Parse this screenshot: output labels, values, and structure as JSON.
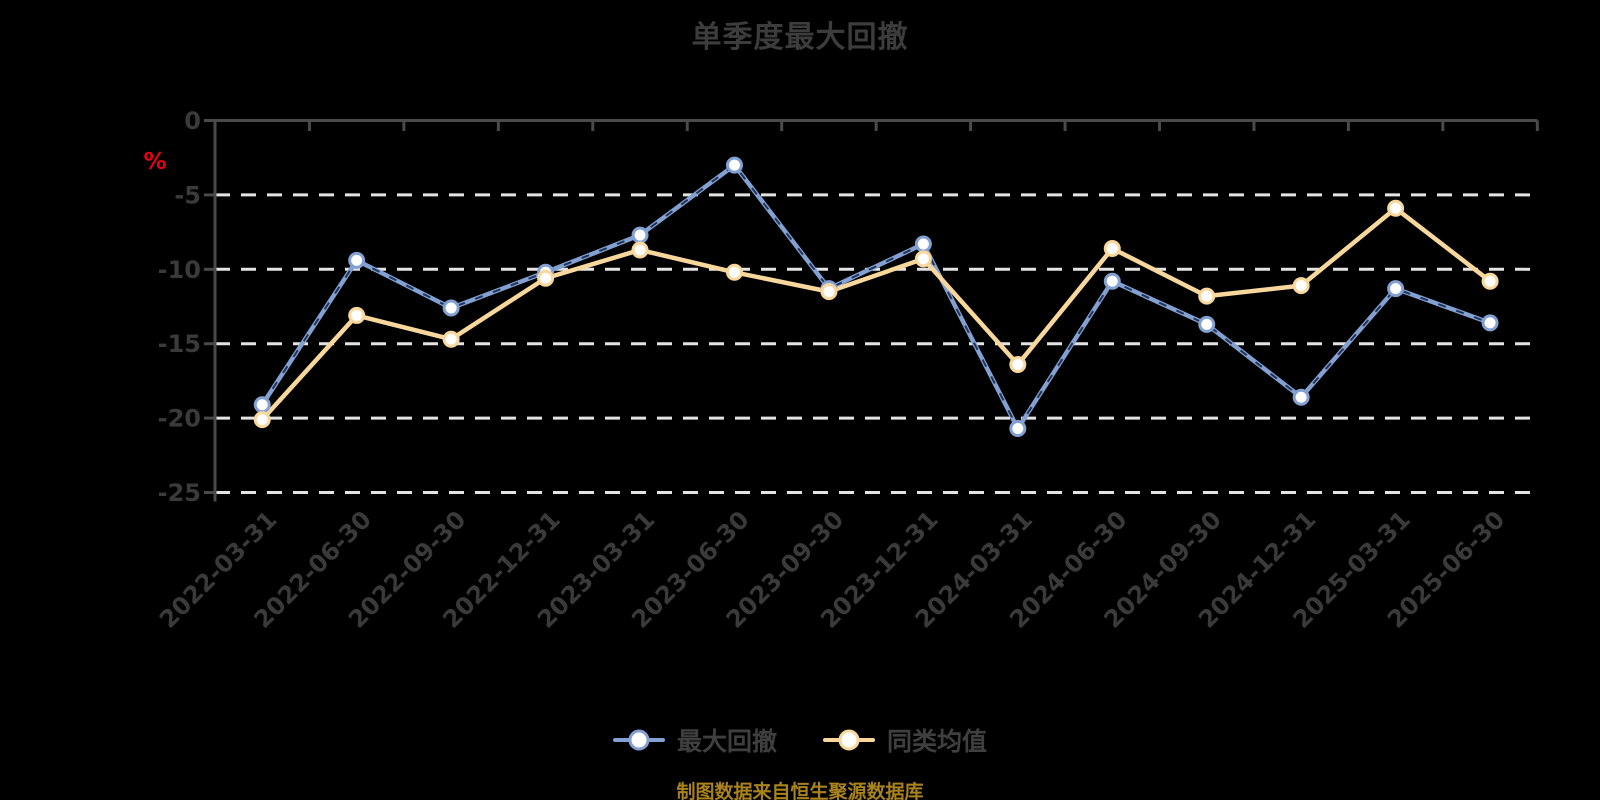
{
  "chart_data": {
    "type": "line",
    "title": "单季度最大回撤",
    "ylabel": "%",
    "source_note": "制图数据来自恒生聚源数据库",
    "ylim": [
      -25,
      0
    ],
    "yticks": [
      0,
      -5,
      -10,
      -15,
      -20,
      -25
    ],
    "grid": "horizontal-dashed",
    "legend_position": "bottom",
    "categories": [
      "2022-03-31",
      "2022-06-30",
      "2022-09-30",
      "2022-12-31",
      "2023-03-31",
      "2023-06-30",
      "2023-09-30",
      "2023-12-31",
      "2024-03-31",
      "2024-06-30",
      "2024-09-30",
      "2024-12-31",
      "2025-03-31",
      "2025-06-30"
    ],
    "series": [
      {
        "name": "最大回撤",
        "color": "#82a0d2",
        "values": [
          -19.1,
          -9.4,
          -12.6,
          -10.2,
          -7.7,
          -3.0,
          -11.3,
          -8.3,
          -20.7,
          -10.8,
          -13.7,
          -18.6,
          -11.3,
          -13.6
        ]
      },
      {
        "name": "同类均值",
        "color": "#f8d79c",
        "values": [
          -20.1,
          -13.1,
          -14.7,
          -10.6,
          -8.7,
          -10.2,
          -11.5,
          -9.3,
          -16.4,
          -8.6,
          -11.8,
          -11.1,
          -5.9,
          -10.8
        ]
      }
    ]
  },
  "colors": {
    "background": "#000000",
    "title_text": "#3c3c3c",
    "axis_text": "#3a3a3a",
    "axis_line": "#4a4a4a",
    "gridline": "#e3e3e3",
    "unit_label": "#e60012",
    "legend_text": "#3f3f3f",
    "source_text": "#a8821e",
    "marker_fill": "#ffffff",
    "blue_dash_accent": "#16284a"
  }
}
